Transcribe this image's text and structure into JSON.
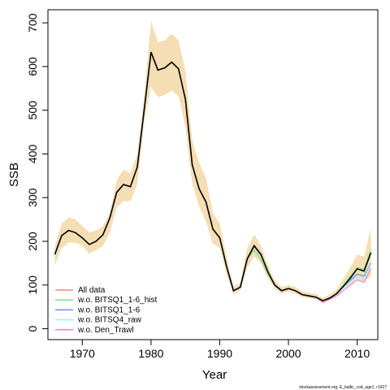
{
  "chart_data": {
    "type": "line",
    "xlabel": "Year",
    "ylabel": "SSB",
    "xlim": [
      1965,
      2013
    ],
    "ylim": [
      -25,
      730
    ],
    "x_ticks": [
      1970,
      1980,
      1990,
      2000,
      2010
    ],
    "y_ticks": [
      0,
      100,
      200,
      300,
      400,
      500,
      600,
      700
    ],
    "x": [
      1966,
      1967,
      1968,
      1969,
      1970,
      1971,
      1972,
      1973,
      1974,
      1975,
      1976,
      1977,
      1978,
      1979,
      1980,
      1981,
      1982,
      1983,
      1984,
      1985,
      1986,
      1987,
      1988,
      1989,
      1990,
      1991,
      1992,
      1993,
      1994,
      1995,
      1996,
      1997,
      1998,
      1999,
      2000,
      2001,
      2002,
      2003,
      2004,
      2005,
      2006,
      2007,
      2008,
      2009,
      2010,
      2011,
      2012
    ],
    "band": {
      "color": "#f5deb3",
      "upper": [
        190,
        240,
        255,
        250,
        235,
        220,
        225,
        235,
        265,
        340,
        365,
        355,
        400,
        530,
        705,
        655,
        660,
        675,
        660,
        590,
        430,
        380,
        345,
        265,
        240,
        165,
        95,
        105,
        185,
        215,
        190,
        145,
        110,
        95,
        100,
        95,
        85,
        82,
        80,
        70,
        78,
        90,
        115,
        140,
        170,
        165,
        230
      ],
      "lower": [
        145,
        185,
        197,
        197,
        190,
        172,
        180,
        190,
        220,
        278,
        292,
        292,
        332,
        472,
        555,
        530,
        535,
        545,
        532,
        462,
        332,
        280,
        245,
        195,
        185,
        125,
        78,
        88,
        140,
        165,
        150,
        115,
        92,
        80,
        85,
        80,
        72,
        70,
        67,
        60,
        68,
        76,
        92,
        102,
        115,
        108,
        120
      ]
    },
    "series": [
      {
        "name": "All data",
        "color": "#ff8080",
        "values": [
          170,
          213,
          225,
          220,
          208,
          193,
          200,
          215,
          253,
          312,
          330,
          325,
          370,
          500,
          633,
          592,
          597,
          610,
          595,
          525,
          375,
          320,
          290,
          228,
          208,
          142,
          87,
          95,
          160,
          190,
          170,
          130,
          100,
          87,
          92,
          87,
          78,
          75,
          72,
          64,
          70,
          80,
          97,
          116,
          137,
          132,
          174
        ]
      },
      {
        "name": "w.o. BITSQ1_1-6_hist",
        "color": "#80e080",
        "values": [
          170,
          213,
          225,
          220,
          208,
          193,
          200,
          215,
          253,
          312,
          330,
          325,
          370,
          500,
          633,
          592,
          597,
          610,
          595,
          525,
          375,
          320,
          290,
          228,
          208,
          142,
          87,
          95,
          158,
          180,
          158,
          125,
          100,
          87,
          92,
          87,
          78,
          75,
          72,
          64,
          70,
          82,
          100,
          120,
          140,
          136,
          180
        ]
      },
      {
        "name": "w.o. BITSQ1_1-6",
        "color": "#8080ff",
        "values": [
          170,
          213,
          225,
          220,
          208,
          193,
          200,
          215,
          253,
          312,
          330,
          325,
          370,
          500,
          633,
          592,
          597,
          610,
          595,
          525,
          375,
          320,
          290,
          228,
          208,
          142,
          87,
          95,
          160,
          188,
          168,
          130,
          100,
          87,
          92,
          87,
          78,
          75,
          72,
          64,
          70,
          80,
          95,
          110,
          125,
          120,
          150
        ]
      },
      {
        "name": "w.o. BITSQ4_raw",
        "color": "#80ffff",
        "values": [
          170,
          213,
          225,
          220,
          208,
          193,
          200,
          215,
          253,
          312,
          330,
          325,
          370,
          500,
          633,
          592,
          597,
          610,
          595,
          525,
          375,
          320,
          290,
          228,
          208,
          142,
          87,
          95,
          160,
          190,
          170,
          130,
          100,
          87,
          92,
          87,
          78,
          75,
          72,
          64,
          70,
          80,
          94,
          108,
          120,
          115,
          148
        ]
      },
      {
        "name": "w.o. Den_Trawl",
        "color": "#ff80d0",
        "values": [
          170,
          213,
          225,
          220,
          208,
          193,
          200,
          215,
          253,
          312,
          330,
          325,
          370,
          500,
          633,
          592,
          597,
          610,
          595,
          525,
          375,
          320,
          290,
          228,
          208,
          142,
          87,
          95,
          160,
          190,
          170,
          130,
          100,
          87,
          92,
          87,
          78,
          75,
          72,
          60,
          67,
          75,
          88,
          100,
          112,
          106,
          138
        ]
      },
      {
        "name": "",
        "color": "#000000",
        "values": [
          170,
          213,
          225,
          220,
          208,
          193,
          200,
          215,
          253,
          312,
          330,
          325,
          370,
          500,
          633,
          592,
          597,
          610,
          595,
          525,
          375,
          320,
          290,
          228,
          208,
          142,
          87,
          95,
          160,
          190,
          170,
          130,
          100,
          87,
          92,
          87,
          78,
          75,
          72,
          64,
          70,
          80,
          97,
          116,
          137,
          132,
          174
        ]
      }
    ],
    "legend_position": "bottom-left",
    "grid": false
  },
  "credit": "stockassessment.org, E_baltic_cod_age1, r1927"
}
